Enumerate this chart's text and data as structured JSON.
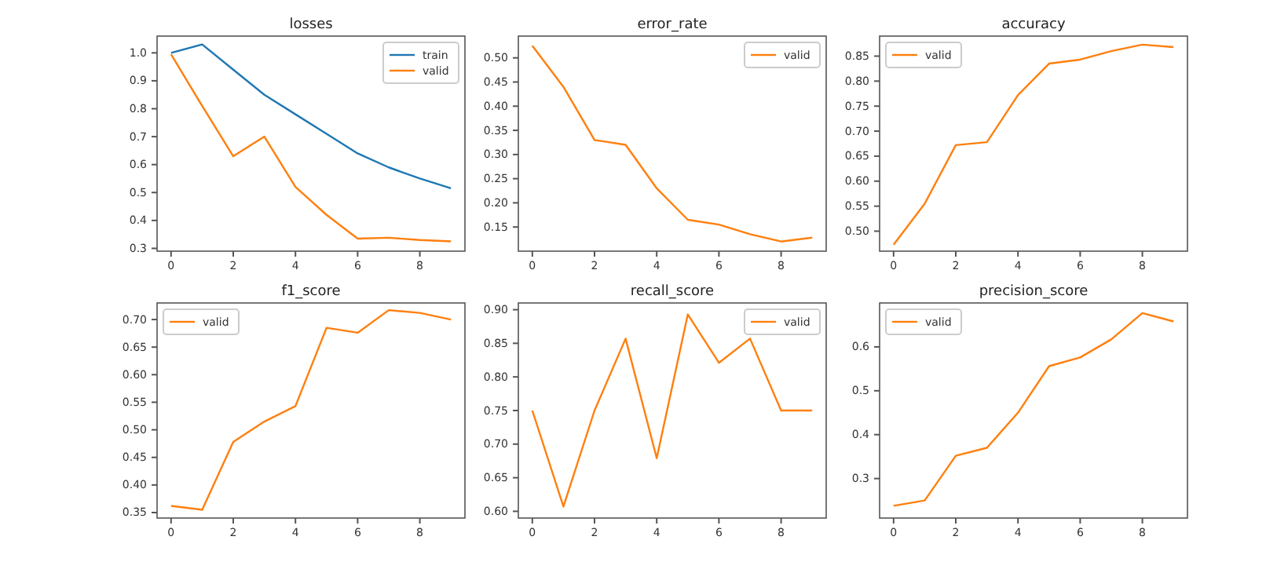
{
  "chart_data": [
    {
      "type": "line",
      "title": "losses",
      "x": [
        0,
        1,
        2,
        3,
        4,
        5,
        6,
        7,
        8,
        9
      ],
      "xlim": [
        -0.45,
        9.45
      ],
      "xticks": [
        0,
        2,
        4,
        6,
        8
      ],
      "ylim": [
        0.29,
        1.06
      ],
      "yticks": [
        {
          "value": 0.3,
          "label": "0.3"
        },
        {
          "value": 0.4,
          "label": "0.4"
        },
        {
          "value": 0.5,
          "label": "0.5"
        },
        {
          "value": 0.6,
          "label": "0.6"
        },
        {
          "value": 0.7,
          "label": "0.7"
        },
        {
          "value": 0.8,
          "label": "0.8"
        },
        {
          "value": 0.9,
          "label": "0.9"
        },
        {
          "value": 1.0,
          "label": "1.0"
        }
      ],
      "legend": "top right",
      "series": [
        {
          "name": "train",
          "color": "#1f77b4",
          "values": [
            1.0,
            1.03,
            0.94,
            0.85,
            0.78,
            0.71,
            0.64,
            0.59,
            0.55,
            0.515
          ]
        },
        {
          "name": "valid",
          "color": "#ff7f0e",
          "values": [
            0.995,
            0.81,
            0.63,
            0.7,
            0.52,
            0.42,
            0.335,
            0.338,
            0.33,
            0.325
          ]
        }
      ]
    },
    {
      "type": "line",
      "title": "error_rate",
      "x": [
        0,
        1,
        2,
        3,
        4,
        5,
        6,
        7,
        8,
        9
      ],
      "xlim": [
        -0.45,
        9.45
      ],
      "xticks": [
        0,
        2,
        4,
        6,
        8
      ],
      "ylim": [
        0.1,
        0.545
      ],
      "yticks": [
        0.15,
        {
          "value": 0.2,
          "label": "0.20"
        },
        0.25,
        {
          "value": 0.3,
          "label": "0.30"
        },
        0.35,
        {
          "value": 0.4,
          "label": "0.40"
        },
        0.45,
        {
          "value": 0.5,
          "label": "0.50"
        }
      ],
      "legend": "top right",
      "series": [
        {
          "name": "valid",
          "color": "#ff7f0e",
          "values": [
            0.525,
            0.44,
            0.33,
            0.32,
            0.23,
            0.165,
            0.155,
            0.135,
            0.12,
            0.128
          ]
        }
      ]
    },
    {
      "type": "line",
      "title": "accuracy",
      "x": [
        0,
        1,
        2,
        3,
        4,
        5,
        6,
        7,
        8,
        9
      ],
      "xlim": [
        -0.45,
        9.45
      ],
      "xticks": [
        0,
        2,
        4,
        6,
        8
      ],
      "ylim": [
        0.46,
        0.89
      ],
      "yticks": [
        {
          "value": 0.5,
          "label": "0.50"
        },
        0.55,
        {
          "value": 0.6,
          "label": "0.60"
        },
        0.65,
        {
          "value": 0.7,
          "label": "0.70"
        },
        0.75,
        {
          "value": 0.8,
          "label": "0.80"
        },
        0.85
      ],
      "legend": "top left",
      "series": [
        {
          "name": "valid",
          "color": "#ff7f0e",
          "values": [
            0.473,
            0.555,
            0.672,
            0.678,
            0.772,
            0.835,
            0.843,
            0.86,
            0.873,
            0.868
          ]
        }
      ]
    },
    {
      "type": "line",
      "title": "f1_score",
      "x": [
        0,
        1,
        2,
        3,
        4,
        5,
        6,
        7,
        8,
        9
      ],
      "xlim": [
        -0.45,
        9.45
      ],
      "xticks": [
        0,
        2,
        4,
        6,
        8
      ],
      "ylim": [
        0.34,
        0.73
      ],
      "yticks": [
        0.35,
        {
          "value": 0.4,
          "label": "0.40"
        },
        0.45,
        {
          "value": 0.5,
          "label": "0.50"
        },
        0.55,
        {
          "value": 0.6,
          "label": "0.60"
        },
        0.65,
        {
          "value": 0.7,
          "label": "0.70"
        }
      ],
      "legend": "top left",
      "series": [
        {
          "name": "valid",
          "color": "#ff7f0e",
          "values": [
            0.362,
            0.355,
            0.478,
            0.515,
            0.543,
            0.685,
            0.676,
            0.717,
            0.712,
            0.7
          ]
        }
      ]
    },
    {
      "type": "line",
      "title": "recall_score",
      "x": [
        0,
        1,
        2,
        3,
        4,
        5,
        6,
        7,
        8,
        9
      ],
      "xlim": [
        -0.45,
        9.45
      ],
      "xticks": [
        0,
        2,
        4,
        6,
        8
      ],
      "ylim": [
        0.59,
        0.91
      ],
      "yticks": [
        {
          "value": 0.6,
          "label": "0.60"
        },
        0.65,
        {
          "value": 0.7,
          "label": "0.70"
        },
        0.75,
        {
          "value": 0.8,
          "label": "0.80"
        },
        0.85,
        {
          "value": 0.9,
          "label": "0.90"
        }
      ],
      "legend": "top right",
      "series": [
        {
          "name": "valid",
          "color": "#ff7f0e",
          "values": [
            0.75,
            0.607,
            0.75,
            0.857,
            0.679,
            0.893,
            0.821,
            0.857,
            0.75,
            0.75
          ]
        }
      ]
    },
    {
      "type": "line",
      "title": "precision_score",
      "x": [
        0,
        1,
        2,
        3,
        4,
        5,
        6,
        7,
        8,
        9
      ],
      "xlim": [
        -0.45,
        9.45
      ],
      "xticks": [
        0,
        2,
        4,
        6,
        8
      ],
      "ylim": [
        0.21,
        0.7
      ],
      "yticks": [
        0.3,
        0.4,
        0.5,
        0.6
      ],
      "legend": "top left",
      "series": [
        {
          "name": "valid",
          "color": "#ff7f0e",
          "values": [
            0.238,
            0.25,
            0.352,
            0.37,
            0.45,
            0.556,
            0.576,
            0.617,
            0.677,
            0.658
          ]
        }
      ]
    }
  ]
}
